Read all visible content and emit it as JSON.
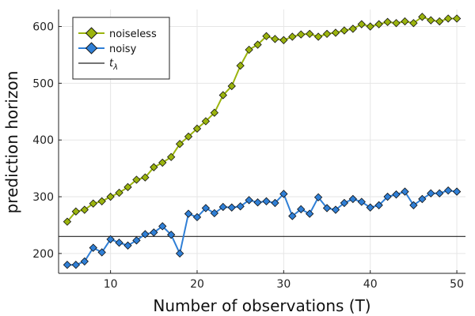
{
  "chart_data": {
    "type": "line",
    "title": "",
    "xlabel": "Number of observations (T)",
    "ylabel": "prediction horizon",
    "xlim": [
      4,
      51
    ],
    "ylim": [
      165,
      630
    ],
    "xticks": [
      10,
      20,
      30,
      40,
      50
    ],
    "yticks": [
      200,
      300,
      400,
      500,
      600
    ],
    "grid": true,
    "legend_position": "top-left",
    "x": [
      5,
      6,
      7,
      8,
      9,
      10,
      11,
      12,
      13,
      14,
      15,
      16,
      17,
      18,
      19,
      20,
      21,
      22,
      23,
      24,
      25,
      26,
      27,
      28,
      29,
      30,
      31,
      32,
      33,
      34,
      35,
      36,
      37,
      38,
      39,
      40,
      41,
      42,
      43,
      44,
      45,
      46,
      47,
      48,
      49,
      50
    ],
    "series": [
      {
        "name": "noiseless",
        "color": "#9bb40e",
        "marker": "diamond",
        "values": [
          256,
          274,
          277,
          288,
          292,
          300,
          307,
          317,
          330,
          334,
          352,
          360,
          370,
          393,
          406,
          420,
          433,
          448,
          479,
          495,
          531,
          559,
          568,
          583,
          578,
          576,
          582,
          586,
          587,
          582,
          587,
          589,
          593,
          596,
          604,
          600,
          604,
          608,
          606,
          609,
          606,
          617,
          611,
          609,
          614,
          614
        ]
      },
      {
        "name": "noisy",
        "color": "#2f7fd6",
        "marker": "diamond",
        "values": [
          180,
          180,
          186,
          210,
          202,
          225,
          219,
          214,
          223,
          234,
          237,
          248,
          233,
          200,
          270,
          264,
          280,
          271,
          282,
          281,
          283,
          294,
          290,
          292,
          289,
          305,
          266,
          278,
          270,
          299,
          280,
          277,
          289,
          296,
          291,
          281,
          285,
          300,
          304,
          309,
          285,
          296,
          306,
          306,
          311,
          309
        ]
      }
    ],
    "hline": {
      "name": "t_λ",
      "label_base": "t",
      "label_sub": "λ",
      "value": 230,
      "color": "#222222"
    }
  }
}
